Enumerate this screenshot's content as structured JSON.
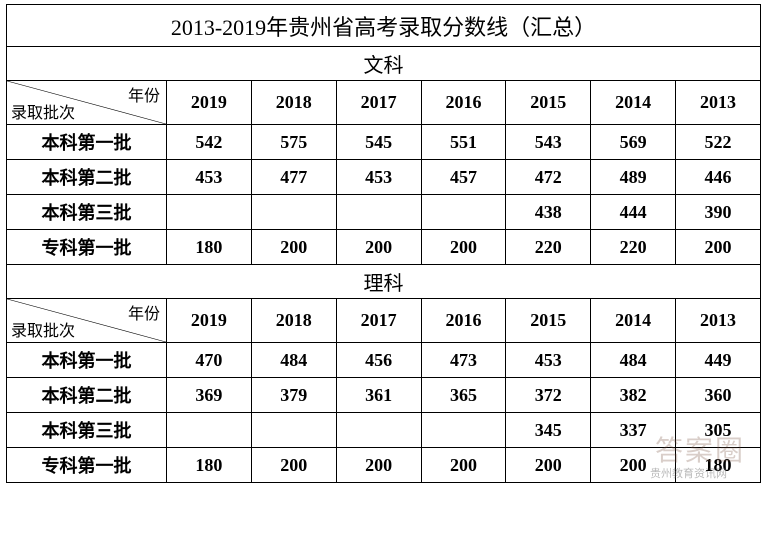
{
  "title": "2013-2019年贵州省高考录取分数线（汇总）",
  "diag_label_top": "年份",
  "diag_label_bottom": "录取批次",
  "watermark": "答案圈",
  "footnote": "贵州教育资讯网",
  "colors": {
    "border": "#000000",
    "background": "#ffffff",
    "text": "#000000",
    "watermark": "rgba(120,80,60,0.28)"
  },
  "sections": [
    {
      "name": "文科",
      "years": [
        "2019",
        "2018",
        "2017",
        "2016",
        "2015",
        "2014",
        "2013"
      ],
      "rows": [
        {
          "label": "本科第一批",
          "values": [
            "542",
            "575",
            "545",
            "551",
            "543",
            "569",
            "522"
          ]
        },
        {
          "label": "本科第二批",
          "values": [
            "453",
            "477",
            "453",
            "457",
            "472",
            "489",
            "446"
          ]
        },
        {
          "label": "本科第三批",
          "values": [
            "",
            "",
            "",
            "",
            "438",
            "444",
            "390"
          ]
        },
        {
          "label": "专科第一批",
          "values": [
            "180",
            "200",
            "200",
            "200",
            "220",
            "220",
            "200"
          ]
        }
      ]
    },
    {
      "name": "理科",
      "years": [
        "2019",
        "2018",
        "2017",
        "2016",
        "2015",
        "2014",
        "2013"
      ],
      "rows": [
        {
          "label": "本科第一批",
          "values": [
            "470",
            "484",
            "456",
            "473",
            "453",
            "484",
            "449"
          ]
        },
        {
          "label": "本科第二批",
          "values": [
            "369",
            "379",
            "361",
            "365",
            "372",
            "382",
            "360"
          ]
        },
        {
          "label": "本科第三批",
          "values": [
            "",
            "",
            "",
            "",
            "345",
            "337",
            "305"
          ]
        },
        {
          "label": "专科第一批",
          "values": [
            "180",
            "200",
            "200",
            "200",
            "200",
            "200",
            "180"
          ]
        }
      ]
    }
  ]
}
